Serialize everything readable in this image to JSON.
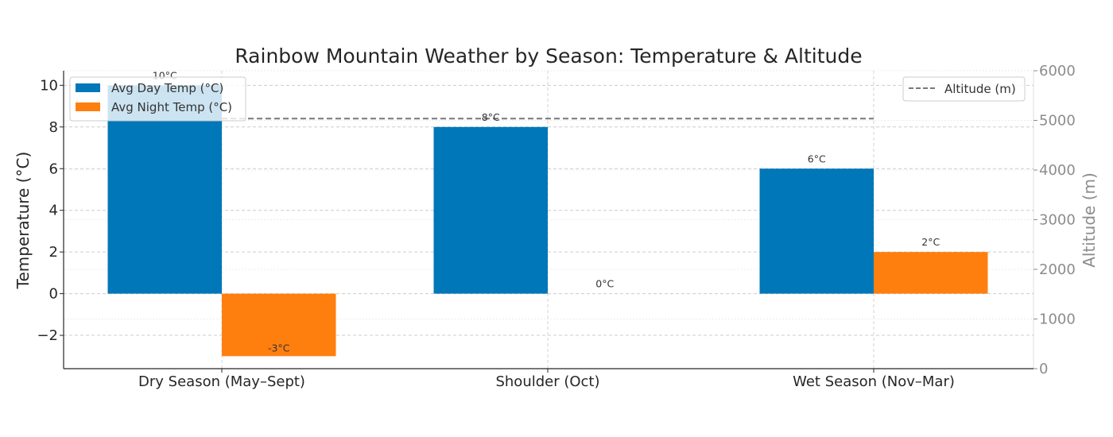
{
  "chart_data": {
    "type": "bar",
    "title": "Rainbow Mountain Weather by Season: Temperature & Altitude",
    "categories": [
      "Dry Season (May–Sept)",
      "Shoulder (Oct)",
      "Wet Season (Nov–Mar)"
    ],
    "series": [
      {
        "name": "Avg Day Temp (°C)",
        "values": [
          10,
          8,
          6
        ],
        "labels": [
          "10°C",
          "8°C",
          "6°C"
        ],
        "color": "#0077b8",
        "axis": "left"
      },
      {
        "name": "Avg Night Temp (°C)",
        "values": [
          -3,
          0,
          2
        ],
        "labels": [
          "-3°C",
          "0°C",
          "2°C"
        ],
        "color": "#ff7f0e",
        "axis": "left"
      }
    ],
    "altitude_series": {
      "name": "Altitude (m)",
      "type": "line",
      "style": "dashed",
      "values": [
        5036,
        5036,
        5036
      ],
      "color": "#77777f",
      "axis": "right"
    },
    "ylabel": "Temperature (°C)",
    "ylim": [
      -3.6,
      10.7
    ],
    "yticks": [
      -2,
      0,
      2,
      4,
      6,
      8,
      10
    ],
    "ytick_labels": [
      "−2",
      "0",
      "2",
      "4",
      "6",
      "8",
      "10"
    ],
    "y2label": "Altitude (m)",
    "y2lim": [
      0,
      6000
    ],
    "y2ticks": [
      0,
      1000,
      2000,
      3000,
      4000,
      5000,
      6000
    ],
    "y2tick_labels": [
      "0",
      "1000",
      "2000",
      "3000",
      "4000",
      "5000",
      "6000"
    ],
    "grid": true,
    "legend_left": "upper-left",
    "legend_right": "upper-right"
  }
}
